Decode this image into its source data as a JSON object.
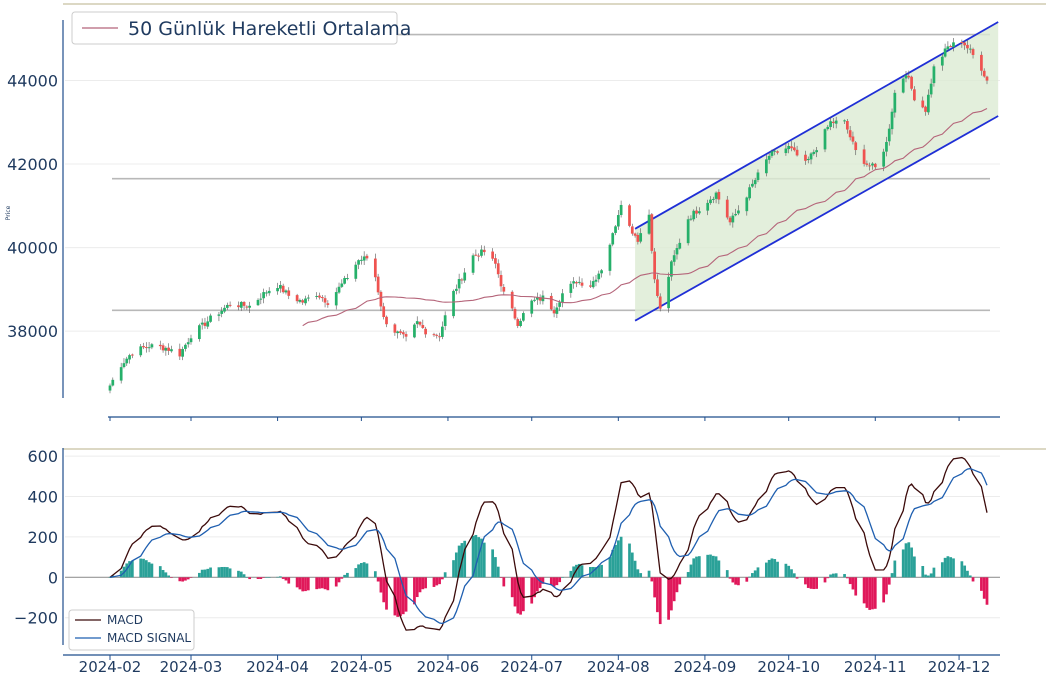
{
  "colors": {
    "up": "#26b06a",
    "down": "#ef5350",
    "ma": "#b5657a",
    "channel": "#1f2fd6",
    "channel_fill": "#dcebd3",
    "hline": "#b8b8b8",
    "macd": "#3b0a0a",
    "signal": "#1f5fb0",
    "hist_pos": "#2aa198",
    "hist_neg": "#e0185a",
    "axis": "#1f4e8c",
    "grid": "#ececec",
    "top_rule": "#c8c0a0"
  },
  "chart_data": [
    {
      "type": "candlestick",
      "ylabel": "Price",
      "ylim": [
        36400,
        45400
      ],
      "yticks": [
        "38000",
        "40000",
        "42000",
        "44000"
      ],
      "legend": {
        "entries": [
          {
            "label": "50 Günlük Hareketli Ortalama"
          }
        ],
        "placement": "top-left"
      },
      "horizontal_lines": [
        38500,
        41650,
        45100
      ],
      "channel": {
        "start_date": "2024-08-07",
        "end_date": "2024-12-15",
        "upper": [
          40450,
          45400
        ],
        "lower": [
          38250,
          43150
        ]
      },
      "price_anchors": [
        [
          "2024-02-01",
          36700
        ],
        [
          "2024-02-05",
          37200
        ],
        [
          "2024-02-09",
          37500
        ],
        [
          "2024-02-15",
          37650
        ],
        [
          "2024-02-21",
          37600
        ],
        [
          "2024-02-26",
          37450
        ],
        [
          "2024-03-01",
          37900
        ],
        [
          "2024-03-08",
          38300
        ],
        [
          "2024-03-15",
          38650
        ],
        [
          "2024-03-22",
          38600
        ],
        [
          "2024-03-28",
          38950
        ],
        [
          "2024-04-01",
          39100
        ],
        [
          "2024-04-05",
          38850
        ],
        [
          "2024-04-10",
          38700
        ],
        [
          "2024-04-15",
          38900
        ],
        [
          "2024-04-19",
          38700
        ],
        [
          "2024-04-25",
          39200
        ],
        [
          "2024-04-30",
          39700
        ],
        [
          "2024-05-03",
          39750
        ],
        [
          "2024-05-06",
          39300
        ],
        [
          "2024-05-09",
          38300
        ],
        [
          "2024-05-13",
          38000
        ],
        [
          "2024-05-17",
          37800
        ],
        [
          "2024-05-21",
          38200
        ],
        [
          "2024-05-24",
          38000
        ],
        [
          "2024-05-29",
          37900
        ],
        [
          "2024-06-02",
          38800
        ],
        [
          "2024-06-06",
          39300
        ],
        [
          "2024-06-10",
          39800
        ],
        [
          "2024-06-14",
          39900
        ],
        [
          "2024-06-18",
          39600
        ],
        [
          "2024-06-21",
          38900
        ],
        [
          "2024-06-26",
          38200
        ],
        [
          "2024-07-01",
          38700
        ],
        [
          "2024-07-05",
          38800
        ],
        [
          "2024-07-09",
          38500
        ],
        [
          "2024-07-12",
          38900
        ],
        [
          "2024-07-17",
          39200
        ],
        [
          "2024-07-22",
          39100
        ],
        [
          "2024-07-26",
          39500
        ],
        [
          "2024-07-30",
          40300
        ],
        [
          "2024-08-02",
          41100
        ],
        [
          "2024-08-05",
          40500
        ],
        [
          "2024-08-08",
          40200
        ],
        [
          "2024-08-12",
          40800
        ],
        [
          "2024-08-14",
          39200
        ],
        [
          "2024-08-16",
          38500
        ],
        [
          "2024-08-20",
          39600
        ],
        [
          "2024-08-26",
          40700
        ],
        [
          "2024-08-31",
          41000
        ],
        [
          "2024-09-05",
          41300
        ],
        [
          "2024-09-10",
          40600
        ],
        [
          "2024-09-13",
          40900
        ],
        [
          "2024-09-18",
          41500
        ],
        [
          "2024-09-24",
          42200
        ],
        [
          "2024-10-01",
          42400
        ],
        [
          "2024-10-07",
          42000
        ],
        [
          "2024-10-11",
          42400
        ],
        [
          "2024-10-16",
          43000
        ],
        [
          "2024-10-21",
          43000
        ],
        [
          "2024-10-25",
          42300
        ],
        [
          "2024-10-29",
          42000
        ],
        [
          "2024-11-01",
          41900
        ],
        [
          "2024-11-05",
          42500
        ],
        [
          "2024-11-08",
          43700
        ],
        [
          "2024-11-12",
          44200
        ],
        [
          "2024-11-15",
          43600
        ],
        [
          "2024-11-19",
          43300
        ],
        [
          "2024-11-22",
          44300
        ],
        [
          "2024-11-27",
          44800
        ],
        [
          "2024-12-02",
          44950
        ],
        [
          "2024-12-05",
          44700
        ],
        [
          "2024-12-09",
          44300
        ],
        [
          "2024-12-11",
          44000
        ]
      ]
    },
    {
      "type": "macd",
      "ylim": [
        -320,
        630
      ],
      "yticks": [
        "600",
        "400",
        "200",
        "0",
        "−200"
      ],
      "xticks": [
        "2024-02",
        "2024-03",
        "2024-04",
        "2024-05",
        "2024-06",
        "2024-07",
        "2024-08",
        "2024-09",
        "2024-10",
        "2024-11",
        "2024-12"
      ],
      "legend": {
        "entries": [
          {
            "label": "MACD"
          },
          {
            "label": "MACD SIGNAL"
          }
        ],
        "placement": "bottom-left"
      }
    }
  ]
}
